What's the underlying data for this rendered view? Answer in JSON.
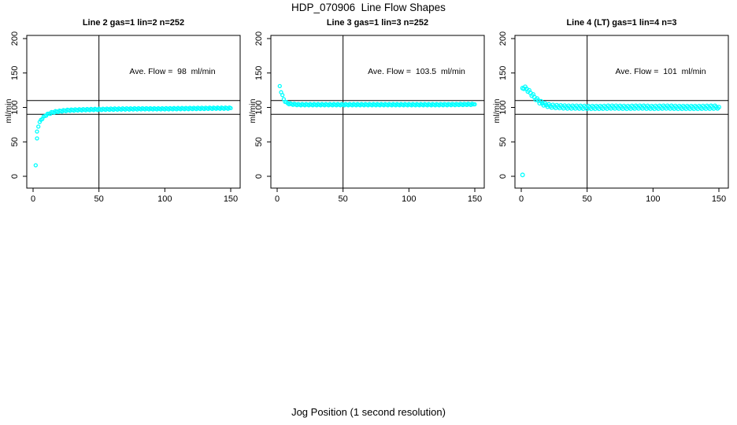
{
  "window": {
    "background": "#ffffff",
    "foreground": "#000000"
  },
  "chart_data": {
    "type": "scatter",
    "title": "HDP_070906  Line Flow Shapes",
    "xlabel": "Jog Position (1 second resolution)",
    "ylabel": "ml/min",
    "x_ticks": [
      0,
      50,
      100,
      150
    ],
    "y_ticks": [
      0,
      50,
      100,
      150,
      200
    ],
    "xlim": [
      0,
      150
    ],
    "ylim": [
      0,
      200
    ],
    "grid": false,
    "marker": "open-circle",
    "marker_color": "#00FFFF",
    "reference_lines": {
      "horizontal": [
        90,
        110
      ],
      "vertical": [
        50
      ]
    },
    "panels": [
      {
        "title": "Line 2 gas=1 lin=2 n=252",
        "annotation": "Ave. Flow =  98  ml/min",
        "ave_flow_ml_min": 98,
        "n": 252,
        "gas": 1,
        "lin": 2,
        "spread": 0.8,
        "marker_r": 2,
        "singles": [
          [
            2,
            16
          ],
          [
            3,
            55
          ]
        ],
        "curve": [
          [
            3,
            65
          ],
          [
            4,
            73
          ],
          [
            5,
            78
          ],
          [
            6,
            82
          ],
          [
            7,
            84
          ],
          [
            8,
            86
          ],
          [
            10,
            89
          ],
          [
            12,
            91
          ],
          [
            15,
            93
          ],
          [
            18,
            94
          ],
          [
            22,
            95
          ],
          [
            27,
            96
          ],
          [
            35,
            96.5
          ],
          [
            45,
            97
          ],
          [
            60,
            97.5
          ],
          [
            80,
            98
          ],
          [
            100,
            98
          ],
          [
            120,
            98.5
          ],
          [
            150,
            99
          ]
        ]
      },
      {
        "title": "Line 3 gas=1 lin=3 n=252",
        "annotation": "Ave. Flow =  103.5  ml/min",
        "ave_flow_ml_min": 103.5,
        "n": 252,
        "gas": 1,
        "lin": 3,
        "spread": 0.8,
        "marker_r": 2,
        "singles": [],
        "curve": [
          [
            2,
            131
          ],
          [
            3,
            123
          ],
          [
            4,
            117
          ],
          [
            5,
            112
          ],
          [
            6,
            109
          ],
          [
            7,
            107
          ],
          [
            8,
            106
          ],
          [
            10,
            105
          ],
          [
            13,
            104.5
          ],
          [
            17,
            104
          ],
          [
            25,
            104
          ],
          [
            40,
            104
          ],
          [
            60,
            104
          ],
          [
            90,
            104
          ],
          [
            120,
            104
          ],
          [
            150,
            104.5
          ]
        ]
      },
      {
        "title": "Line 4 (LT) gas=1 lin=4 n=3",
        "annotation": "Ave. Flow =  101  ml/min",
        "ave_flow_ml_min": 101,
        "n": 3,
        "gas": 1,
        "lin": 4,
        "spread": 1.7,
        "marker_r": 2.3,
        "singles": [
          [
            1,
            2
          ]
        ],
        "curve": [
          [
            1,
            128
          ],
          [
            2,
            129
          ],
          [
            3,
            128
          ],
          [
            4,
            127
          ],
          [
            5,
            125
          ],
          [
            6,
            123
          ],
          [
            7,
            121
          ],
          [
            8,
            119
          ],
          [
            9,
            117
          ],
          [
            10,
            115
          ],
          [
            11,
            113
          ],
          [
            12,
            111
          ],
          [
            13,
            110
          ],
          [
            14,
            108
          ],
          [
            15,
            107
          ],
          [
            16,
            106
          ],
          [
            17,
            105
          ],
          [
            18,
            104
          ],
          [
            20,
            103
          ],
          [
            22,
            102
          ],
          [
            25,
            101.5
          ],
          [
            30,
            101
          ],
          [
            35,
            100.5
          ],
          [
            40,
            100.5
          ],
          [
            50,
            100
          ],
          [
            60,
            100
          ],
          [
            70,
            100.5
          ],
          [
            80,
            100
          ],
          [
            90,
            100.5
          ],
          [
            100,
            100
          ],
          [
            110,
            100.5
          ],
          [
            120,
            100
          ],
          [
            135,
            100
          ],
          [
            150,
            100.5
          ]
        ]
      }
    ]
  }
}
